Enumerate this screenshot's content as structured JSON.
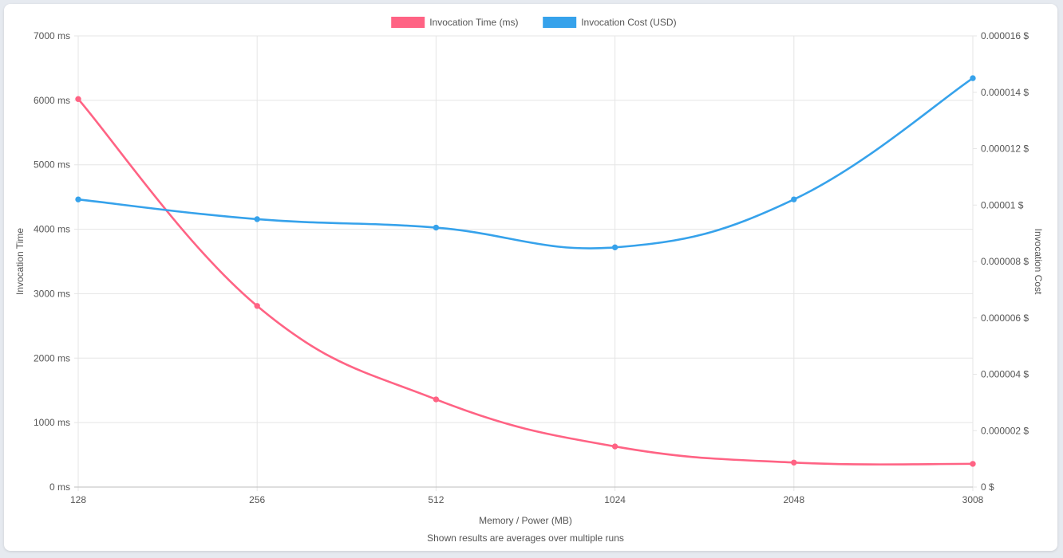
{
  "chart_data": {
    "type": "line",
    "x": [
      "128",
      "256",
      "512",
      "1024",
      "2048",
      "3008"
    ],
    "xlabel": "Memory / Power (MB)",
    "footnote": "Shown results are averages over multiple runs",
    "legend_position": "top-center",
    "grid": true,
    "left_axis": {
      "label": "Invocation Time",
      "range": [
        0,
        7000
      ],
      "ticks": [
        0,
        1000,
        2000,
        3000,
        4000,
        5000,
        6000,
        7000
      ],
      "tick_labels": [
        "0 ms",
        "1000 ms",
        "2000 ms",
        "3000 ms",
        "4000 ms",
        "5000 ms",
        "6000 ms",
        "7000 ms"
      ]
    },
    "right_axis": {
      "label": "Invocation Cost",
      "range": [
        0,
        1.6e-05
      ],
      "ticks": [
        0,
        2e-06,
        4e-06,
        6e-06,
        8e-06,
        1e-05,
        1.2e-05,
        1.4e-05,
        1.6e-05
      ],
      "tick_labels": [
        "0 $",
        "0.000002 $",
        "0.000004 $",
        "0.000006 $",
        "0.000008 $",
        "0.00001 $",
        "0.000012 $",
        "0.000014 $",
        "0.000016 $"
      ]
    },
    "series": [
      {
        "name": "Invocation Time (ms)",
        "axis": "left",
        "color": "#ff6384",
        "values": [
          6020,
          2810,
          1360,
          630,
          380,
          360
        ]
      },
      {
        "name": "Invocation Cost (USD)",
        "axis": "right",
        "color": "#36a2eb",
        "values": [
          1.02e-05,
          9.5e-06,
          9.2e-06,
          8.5e-06,
          1.02e-05,
          1.45e-05
        ]
      }
    ]
  }
}
